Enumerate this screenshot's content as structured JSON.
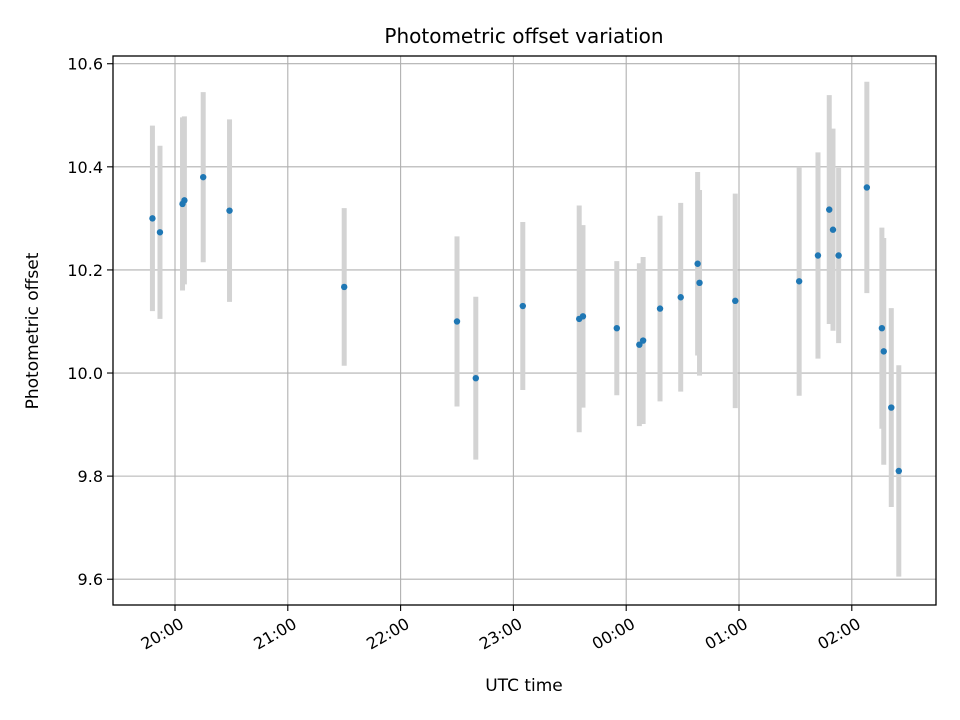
{
  "chart_data": {
    "type": "scatter",
    "title": "Photometric offset variation",
    "xlabel": "UTC time",
    "ylabel": "Photometric offset",
    "x_tick_labels": [
      "20:00",
      "21:00",
      "22:00",
      "23:00",
      "00:00",
      "01:00",
      "02:00"
    ],
    "y_tick_labels": [
      "9.6",
      "9.8",
      "10.0",
      "10.2",
      "10.4",
      "10.6"
    ],
    "ylim": [
      9.55,
      10.615
    ],
    "grid": true,
    "colors": {
      "point": "#1f77b4",
      "errorbar": "#d3d3d3",
      "grid": "#b0b0b0"
    },
    "series": [
      {
        "points": [
          {
            "t": "19:48",
            "y": 10.3,
            "err": 0.18
          },
          {
            "t": "19:52",
            "y": 10.273,
            "err": 0.168
          },
          {
            "t": "20:04",
            "y": 10.328,
            "err": 0.168
          },
          {
            "t": "20:05",
            "y": 10.335,
            "err": 0.163
          },
          {
            "t": "20:15",
            "y": 10.38,
            "err": 0.165
          },
          {
            "t": "20:29",
            "y": 10.315,
            "err": 0.177
          },
          {
            "t": "21:30",
            "y": 10.167,
            "err": 0.153
          },
          {
            "t": "22:30",
            "y": 10.1,
            "err": 0.165
          },
          {
            "t": "22:40",
            "y": 9.99,
            "err": 0.158
          },
          {
            "t": "23:05",
            "y": 10.13,
            "err": 0.163
          },
          {
            "t": "23:35",
            "y": 10.105,
            "err": 0.22
          },
          {
            "t": "23:37",
            "y": 10.11,
            "err": 0.177
          },
          {
            "t": "23:55",
            "y": 10.087,
            "err": 0.13
          },
          {
            "t": "00:07",
            "y": 10.055,
            "err": 0.158
          },
          {
            "t": "00:09",
            "y": 10.063,
            "err": 0.162
          },
          {
            "t": "00:18",
            "y": 10.125,
            "err": 0.18
          },
          {
            "t": "00:29",
            "y": 10.147,
            "err": 0.183
          },
          {
            "t": "00:38",
            "y": 10.212,
            "err": 0.178
          },
          {
            "t": "00:39",
            "y": 10.175,
            "err": 0.18
          },
          {
            "t": "00:58",
            "y": 10.14,
            "err": 0.208
          },
          {
            "t": "01:32",
            "y": 10.178,
            "err": 0.222
          },
          {
            "t": "01:42",
            "y": 10.228,
            "err": 0.2
          },
          {
            "t": "01:48",
            "y": 10.317,
            "err": 0.222
          },
          {
            "t": "01:50",
            "y": 10.278,
            "err": 0.196
          },
          {
            "t": "01:53",
            "y": 10.228,
            "err": 0.17
          },
          {
            "t": "02:08",
            "y": 10.36,
            "err": 0.205
          },
          {
            "t": "02:16",
            "y": 10.087,
            "err": 0.195
          },
          {
            "t": "02:17",
            "y": 10.042,
            "err": 0.22
          },
          {
            "t": "02:21",
            "y": 9.933,
            "err": 0.193
          },
          {
            "t": "02:25",
            "y": 9.81,
            "err": 0.205
          }
        ]
      }
    ]
  }
}
